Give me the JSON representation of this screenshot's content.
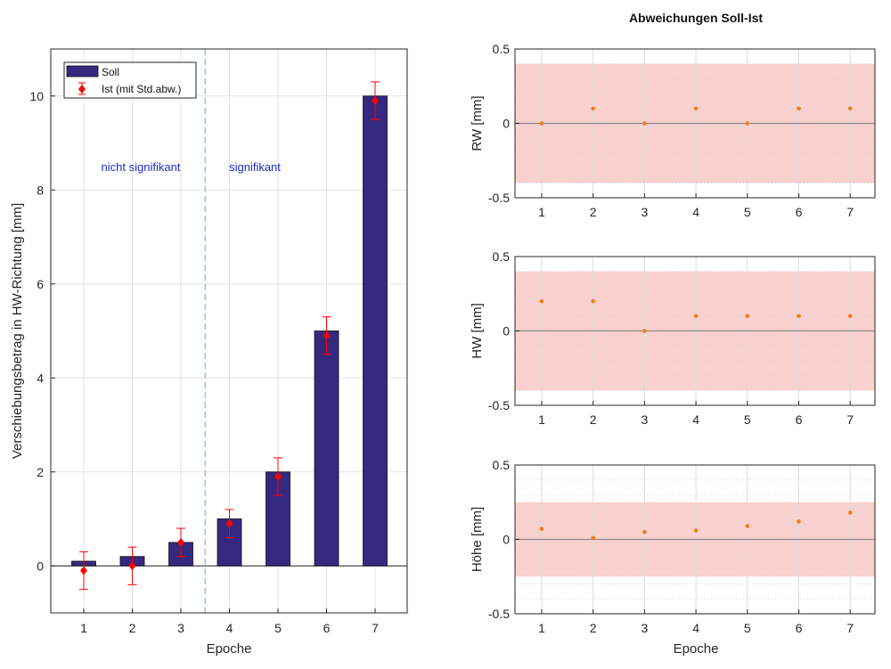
{
  "colors": {
    "bar": "#35297f",
    "ist": "#ff0000",
    "divider": "#7fb8d4",
    "annotation": "#1a2ecc",
    "band": "#f7c6c3",
    "point": "#ef7f1a",
    "zero": "#8c8c8c"
  },
  "chart_data": [
    {
      "type": "bar",
      "categories": [
        "1",
        "2",
        "3",
        "4",
        "5",
        "6",
        "7"
      ],
      "series": [
        {
          "name": "Soll",
          "values": [
            0.1,
            0.2,
            0.5,
            1.0,
            2.0,
            5.0,
            10.0
          ]
        },
        {
          "name": "Ist (mit Std.abw.)",
          "values": [
            -0.1,
            0.0,
            0.5,
            0.9,
            1.9,
            4.9,
            9.9
          ],
          "std": [
            0.4,
            0.4,
            0.3,
            0.3,
            0.4,
            0.4,
            0.4
          ]
        }
      ],
      "xlabel": "Epoche",
      "ylabel": "Verschiebungsbetrag in HW-Richtung [mm]",
      "ylim": [
        -1,
        11
      ],
      "yticks": [
        "0",
        "2",
        "4",
        "6",
        "8",
        "10"
      ],
      "annotations": [
        "nicht signifikant",
        "signifikant"
      ],
      "divider_after_category": 3,
      "grid": true,
      "legend": "top-left"
    },
    {
      "type": "scatter",
      "title": "Abweichungen Soll-Ist",
      "x": [
        1,
        2,
        3,
        4,
        5,
        6,
        7
      ],
      "y": [
        0.0,
        0.1,
        0.0,
        0.1,
        0.0,
        0.1,
        0.1
      ],
      "ylabel": "RW [mm]",
      "ylim": [
        -0.5,
        0.5
      ],
      "yticks": [
        "-0.5",
        "0",
        "0.5"
      ],
      "xticks": [
        "1",
        "2",
        "3",
        "4",
        "5",
        "6",
        "7"
      ],
      "band": [
        -0.4,
        0.4
      ],
      "grid": true
    },
    {
      "type": "scatter",
      "x": [
        1,
        2,
        3,
        4,
        5,
        6,
        7
      ],
      "y": [
        0.2,
        0.2,
        0.0,
        0.1,
        0.1,
        0.1,
        0.1
      ],
      "ylabel": "HW [mm]",
      "ylim": [
        -0.5,
        0.5
      ],
      "yticks": [
        "-0.5",
        "0",
        "0.5"
      ],
      "xticks": [
        "1",
        "2",
        "3",
        "4",
        "5",
        "6",
        "7"
      ],
      "band": [
        -0.4,
        0.4
      ],
      "grid": true
    },
    {
      "type": "scatter",
      "x": [
        1,
        2,
        3,
        4,
        5,
        6,
        7
      ],
      "y": [
        0.07,
        0.01,
        0.05,
        0.06,
        0.09,
        0.12,
        0.18
      ],
      "ylabel": "Höhe [mm]",
      "xlabel": "Epoche",
      "ylim": [
        -0.5,
        0.5
      ],
      "yticks": [
        "-0.5",
        "0",
        "0.5"
      ],
      "xticks": [
        "1",
        "2",
        "3",
        "4",
        "5",
        "6",
        "7"
      ],
      "band": [
        -0.25,
        0.25
      ],
      "grid": true
    }
  ]
}
